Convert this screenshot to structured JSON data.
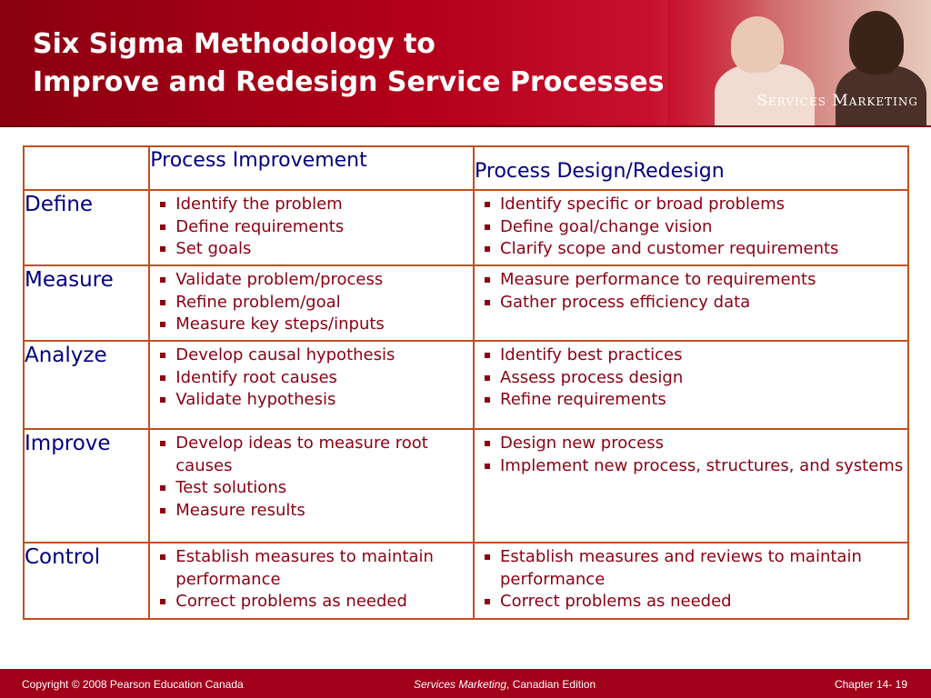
{
  "title": {
    "line1": "Six Sigma Methodology to",
    "line2": "Improve and Redesign Service Processes"
  },
  "brand": "Services Marketing",
  "table": {
    "headers": [
      "",
      "Process Improvement",
      "Process Design/Redesign"
    ],
    "rows": [
      {
        "label": "Define",
        "improvement": [
          "Identify the problem",
          "Define requirements",
          "Set goals"
        ],
        "redesign": [
          "Identify specific or broad problems",
          "Define goal/change vision",
          "Clarify scope and customer requirements"
        ]
      },
      {
        "label": "Measure",
        "improvement": [
          "Validate problem/process",
          "Refine problem/goal",
          "Measure key steps/inputs"
        ],
        "redesign": [
          "Measure performance to requirements",
          "Gather process efficiency data"
        ]
      },
      {
        "label": "Analyze",
        "improvement": [
          "Develop causal hypothesis",
          "Identify root causes",
          "Validate hypothesis"
        ],
        "redesign": [
          "Identify best practices",
          "Assess process design",
          "Refine requirements"
        ]
      },
      {
        "label": "Improve",
        "improvement": [
          "Develop ideas to measure root causes",
          "Test solutions",
          "Measure results"
        ],
        "redesign": [
          "Design new process",
          "Implement new process, structures, and systems"
        ]
      },
      {
        "label": "Control",
        "improvement": [
          "Establish measures to maintain performance",
          "Correct problems as needed"
        ],
        "redesign": [
          "Establish measures and reviews to maintain performance",
          "Correct problems as needed"
        ]
      }
    ]
  },
  "footer": {
    "copyright": "Copyright © 2008 Pearson Education Canada",
    "book_italic": "Services Marketing",
    "book_rest": ", Canadian Edition",
    "chapter": "Chapter 14- 19"
  },
  "colors": {
    "header_red": "#b3001a",
    "table_border": "#c0501f",
    "label_blue": "#000080",
    "bullet_red": "#8b0012",
    "footer_red": "#a0001a"
  }
}
